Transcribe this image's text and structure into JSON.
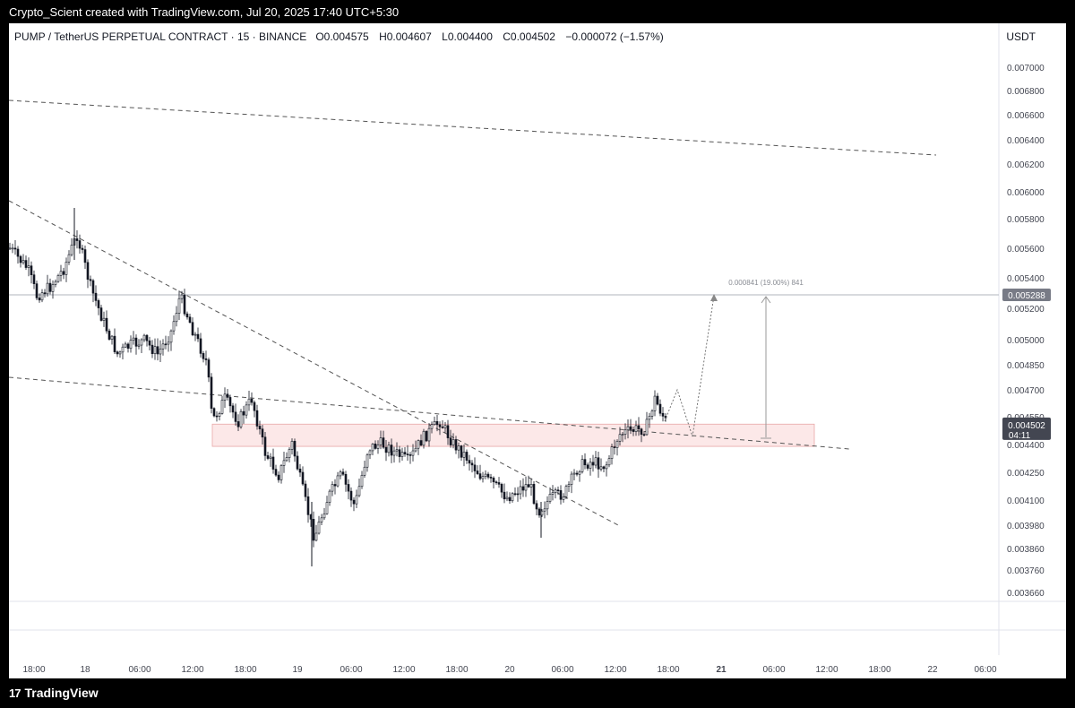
{
  "caption": "Crypto_Scient created with TradingView.com, Jul 20, 2025 17:40 UTC+5:30",
  "brand": {
    "logo_text": "17",
    "name": "TradingView"
  },
  "header": {
    "symbol": "PUMP / TetherUS PERPETUAL CONTRACT · 15 · BINANCE",
    "o_label": "O",
    "o_value": "0.004575",
    "h_label": "H",
    "h_value": "0.004607",
    "l_label": "L",
    "l_value": "0.004400",
    "c_label": "C",
    "c_value": "0.004502",
    "change": "−0.000072 (−1.57%)",
    "currency": "USDT"
  },
  "chart_data": {
    "type": "candlestick",
    "y_ticks": [
      "0.007000",
      "0.006800",
      "0.006600",
      "0.006400",
      "0.006200",
      "0.006000",
      "0.005800",
      "0.005600",
      "0.005400",
      "0.005200",
      "0.005000",
      "0.004850",
      "0.004700",
      "0.004550",
      "0.004400",
      "0.004250",
      "0.004100",
      "0.003980",
      "0.003860",
      "0.003760",
      "0.003660"
    ],
    "x_ticks": [
      "18:00",
      "18",
      "06:00",
      "12:00",
      "18:00",
      "19",
      "06:00",
      "12:00",
      "18:00",
      "20",
      "06:00",
      "12:00",
      "18:00",
      "21",
      "06:00",
      "12:00",
      "18:00",
      "22",
      "06:00"
    ],
    "x_ticks_bold": [
      "21"
    ],
    "resistance_level": {
      "value": 0.005288,
      "label": "0.005288"
    },
    "current_price": {
      "value": 0.004502,
      "label": "0.004502",
      "countdown": "04:11"
    },
    "measure_label": "0.000841 (19.00%) 841",
    "zone": {
      "low": 0.00439,
      "high": 0.00451
    },
    "colors": {
      "candle": "#131722",
      "zone_fill": "#fce8e8",
      "zone_border": "#e8a8a8",
      "trend": "#555555",
      "resistance": "#b2b5be"
    }
  }
}
